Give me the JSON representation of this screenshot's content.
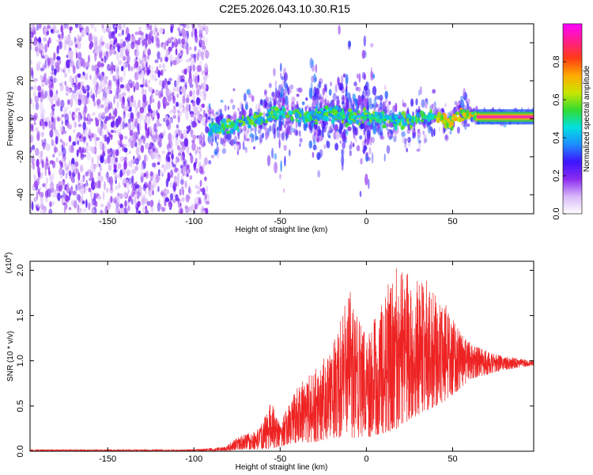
{
  "title": "C2E5.2026.043.10.30.R15",
  "chart_data": [
    {
      "type": "heatmap",
      "name": "spectrogram",
      "xlabel": "Height of straight line (km)",
      "ylabel": "Frequency (Hz)",
      "xlim": [
        -195,
        97
      ],
      "ylim": [
        -50,
        50
      ],
      "xticks": [
        -150,
        -100,
        -50,
        0,
        50
      ],
      "yticks": [
        -40,
        -20,
        0,
        20,
        40
      ],
      "xtick_labels": [
        "-150",
        "-100",
        "-50",
        "0",
        "50"
      ],
      "ytick_labels": [
        "-40",
        "-20",
        "0",
        "20",
        "40"
      ],
      "colorbar": {
        "label": "Normalized spectral amplitude",
        "range": [
          0,
          1
        ],
        "ticks": [
          0,
          0.2,
          0.4,
          0.6,
          0.8
        ],
        "tick_labels": [
          "0.0",
          "0.2",
          "0.4",
          "0.6",
          "0.8"
        ],
        "colors": [
          "#ffffff",
          "#d8b8f8",
          "#8c2cf0",
          "#3c14ff",
          "#1e8cff",
          "#00e0e0",
          "#32dc32",
          "#c8e600",
          "#ffaa00",
          "#ff3c14",
          "#ff1e8c",
          "#ff00ff"
        ]
      },
      "features": {
        "noise_region_x": [
          -195,
          -92
        ],
        "trace_points": [
          [
            -90,
            -6
          ],
          [
            -80,
            -4
          ],
          [
            -70,
            -2
          ],
          [
            -60,
            0
          ],
          [
            -50,
            3
          ],
          [
            -40,
            2
          ],
          [
            -30,
            1
          ],
          [
            -20,
            3
          ],
          [
            -10,
            1
          ],
          [
            0,
            2
          ],
          [
            10,
            0
          ],
          [
            20,
            -1
          ],
          [
            30,
            0
          ],
          [
            40,
            2
          ],
          [
            48,
            -2
          ],
          [
            55,
            3
          ],
          [
            65,
            1
          ],
          [
            80,
            1
          ],
          [
            97,
            1
          ]
        ],
        "burst_clusters_x": [
          -50,
          -28,
          -12,
          0
        ]
      }
    },
    {
      "type": "line",
      "name": "snr",
      "xlabel": "Height of straight line (km)",
      "ylabel": "SNR (10 * v/v)",
      "yscale_label": "(x10",
      "yscale_exp": "4",
      "xlim": [
        -195,
        97
      ],
      "ylim": [
        0,
        2.1
      ],
      "xticks": [
        -150,
        -100,
        -50,
        0,
        50
      ],
      "yticks": [
        0,
        0.5,
        1.0,
        1.5,
        2.0
      ],
      "xtick_labels": [
        "-150",
        "-100",
        "-50",
        "0",
        "50"
      ],
      "ytick_labels": [
        "0.0",
        "0.5",
        "1.0",
        "1.5",
        "2.0"
      ],
      "line_color": "#ee2222",
      "envelope": {
        "x": [
          -195,
          -100,
          -82,
          -75,
          -62,
          -55,
          -50,
          -45,
          -40,
          -30,
          -20,
          -10,
          0,
          10,
          18,
          25,
          35,
          45,
          55,
          60,
          70,
          80,
          97
        ],
        "upper": [
          0.02,
          0.02,
          0.05,
          0.15,
          0.25,
          0.55,
          0.3,
          0.55,
          0.7,
          0.95,
          1.15,
          1.8,
          1.25,
          1.75,
          2.05,
          1.95,
          1.9,
          1.65,
          1.3,
          1.2,
          1.12,
          1.05,
          1.0
        ],
        "lower": [
          0.0,
          0.0,
          0.0,
          0.02,
          0.02,
          0.03,
          0.05,
          0.08,
          0.1,
          0.1,
          0.15,
          0.15,
          0.15,
          0.2,
          0.25,
          0.35,
          0.45,
          0.55,
          0.7,
          0.8,
          0.85,
          0.9,
          0.95
        ]
      }
    }
  ]
}
